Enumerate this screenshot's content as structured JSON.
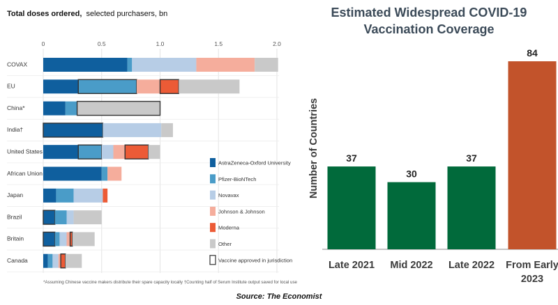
{
  "source": "Source: The Economist",
  "left_chart_title_bold": "Total doses ordered,",
  "left_chart_title_rest": "selected purchasers, bn",
  "left_footnote": "*Assuming Chinese vaccine makers distribute their spare capacity locally †Counting half of Serum Institute output saved for local use",
  "colors": {
    "AstraZeneca-Oxford University": "#0f5f9e",
    "Pfizer-BioNTech": "#4a9cc8",
    "Novavax": "#b7cde6",
    "Johnson & Johnson": "#f5ad9c",
    "Moderna": "#ec5b36",
    "Other": "#c9c9c9",
    "right_green": "#016a3b",
    "right_orange": "#c2532b"
  },
  "chart_data": [
    {
      "type": "bar",
      "orientation": "horizontal",
      "stacked": true,
      "title": "Total doses ordered, selected purchasers, bn",
      "xlim": [
        0,
        2.0
      ],
      "xticks": [
        "0",
        "0.5",
        "1.0",
        "1.5",
        "2.0"
      ],
      "categories": [
        "COVAX",
        "EU",
        "China*",
        "India†",
        "United States",
        "African Union",
        "Japan",
        "Brazil",
        "Britain",
        "Canada"
      ],
      "series": [
        {
          "name": "AstraZeneca-Oxford University",
          "values": [
            0.72,
            0.3,
            0.19,
            0.51,
            0.3,
            0.5,
            0.11,
            0.1,
            0.1,
            0.04
          ]
        },
        {
          "name": "Pfizer-BioNTech",
          "values": [
            0.04,
            0.5,
            0.1,
            0.0,
            0.2,
            0.05,
            0.15,
            0.1,
            0.04,
            0.04
          ]
        },
        {
          "name": "Novavax",
          "values": [
            0.55,
            0.0,
            0.0,
            0.5,
            0.1,
            0.0,
            0.25,
            0.06,
            0.06,
            0.05
          ]
        },
        {
          "name": "Johnson & Johnson",
          "values": [
            0.5,
            0.2,
            0.0,
            0.0,
            0.1,
            0.12,
            0.0,
            0.0,
            0.03,
            0.02
          ]
        },
        {
          "name": "Moderna",
          "values": [
            0.0,
            0.16,
            0.0,
            0.0,
            0.2,
            0.0,
            0.04,
            0.0,
            0.02,
            0.04
          ]
        },
        {
          "name": "Other",
          "values": [
            0.2,
            0.52,
            0.71,
            0.1,
            0.1,
            0.0,
            0.0,
            0.24,
            0.19,
            0.14
          ]
        }
      ],
      "approved_in_jurisdiction": [
        [
          false,
          false,
          false,
          false,
          false,
          false
        ],
        [
          false,
          true,
          false,
          false,
          true,
          false
        ],
        [
          false,
          false,
          false,
          false,
          false,
          true
        ],
        [
          true,
          false,
          false,
          false,
          false,
          false
        ],
        [
          false,
          true,
          false,
          false,
          true,
          false
        ],
        [
          false,
          false,
          false,
          false,
          false,
          false
        ],
        [
          false,
          false,
          false,
          false,
          false,
          false
        ],
        [
          true,
          false,
          false,
          false,
          false,
          false
        ],
        [
          true,
          false,
          false,
          false,
          true,
          false
        ],
        [
          false,
          false,
          false,
          false,
          true,
          false
        ]
      ],
      "legend": {
        "placement": "right",
        "items": [
          "AstraZeneca-Oxford University",
          "Pfizer-BioNTech",
          "Novavax",
          "Johnson & Johnson",
          "Moderna",
          "Other"
        ],
        "outline_item": "Vaccine approved in jurisdiction"
      },
      "grid": true
    },
    {
      "type": "bar",
      "title": "Estimated Widespread COVID-19 Vaccination Coverage",
      "title_lines": [
        "Estimated Widespread COVID-19",
        "Vaccination Coverage"
      ],
      "ylabel": "Number of Countries",
      "xlabel": "",
      "categories": [
        "Late 2021",
        "Mid 2022",
        "Late 2022",
        "From Early 2023"
      ],
      "category_lines": [
        [
          "Late 2021"
        ],
        [
          "Mid 2022"
        ],
        [
          "Late 2022"
        ],
        [
          "From Early",
          "2023"
        ]
      ],
      "values": [
        37,
        30,
        37,
        84
      ],
      "bar_colors": [
        "#016a3b",
        "#016a3b",
        "#016a3b",
        "#c2532b"
      ],
      "data_labels": [
        "37",
        "30",
        "37",
        "84"
      ],
      "ylim": [
        0,
        90
      ],
      "grid": false
    }
  ]
}
